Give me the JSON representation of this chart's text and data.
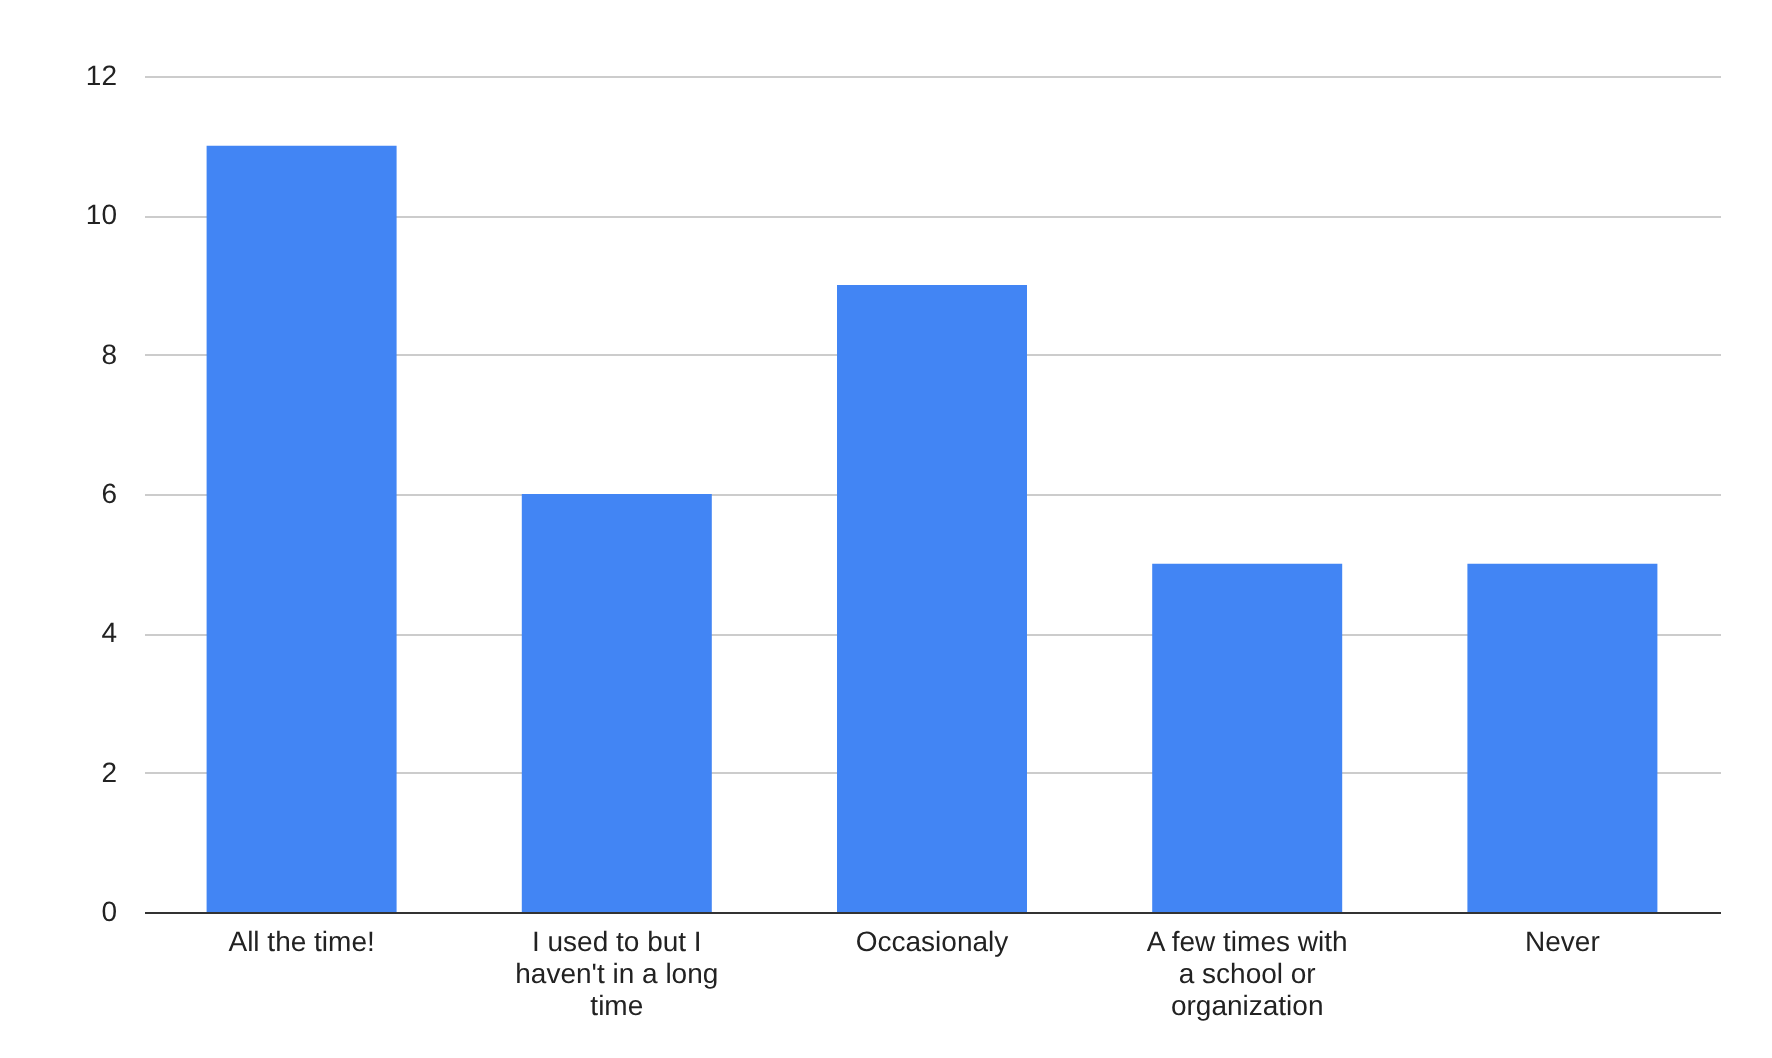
{
  "chart_data": {
    "type": "bar",
    "categories": [
      "All the time!",
      "I used to but I haven't in a long time",
      "Occasionaly",
      "A few times with a school or organization",
      "Never"
    ],
    "values": [
      11,
      6,
      9,
      5,
      5
    ],
    "color": "#4285f4",
    "ylim": [
      0,
      12
    ],
    "yticks": [
      0,
      2,
      4,
      6,
      8,
      10,
      12
    ],
    "grid": "y"
  }
}
